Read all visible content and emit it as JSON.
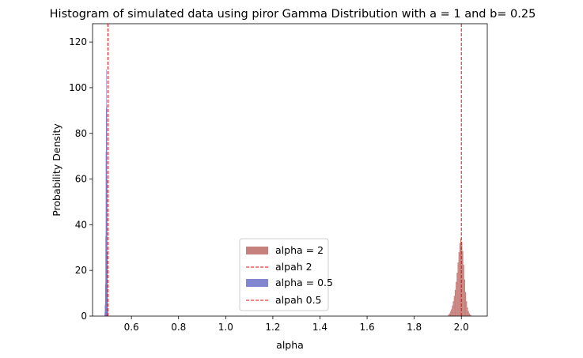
{
  "chart_data": {
    "type": "bar",
    "title": "Histogram of simulated data using piror Gamma Distribution with a = 1 and b= 0.25",
    "xlabel": "alpha",
    "ylabel": "Probability Density",
    "xlim": [
      0.435,
      2.11
    ],
    "ylim": [
      0,
      128
    ],
    "xticks": [
      0.6,
      0.8,
      1.0,
      1.2,
      1.4,
      1.6,
      1.8,
      2.0
    ],
    "xtick_labels": [
      "0.6",
      "0.8",
      "1.0",
      "1.2",
      "1.4",
      "1.6",
      "1.8",
      "2.0"
    ],
    "yticks": [
      0,
      20,
      40,
      60,
      80,
      100,
      120
    ],
    "ytick_labels": [
      "0",
      "20",
      "40",
      "60",
      "80",
      "100",
      "120"
    ],
    "grid": false,
    "legend_position": "lower-center",
    "series": [
      {
        "name": "alpha = 2",
        "kind": "histogram",
        "color": "#b8615b",
        "bin_width": 0.004,
        "bins": [
          [
            1.944,
            0.6
          ],
          [
            1.948,
            1.2
          ],
          [
            1.952,
            2.0
          ],
          [
            1.956,
            3.0
          ],
          [
            1.96,
            4.6
          ],
          [
            1.964,
            6.5
          ],
          [
            1.968,
            8.8
          ],
          [
            1.972,
            11.5
          ],
          [
            1.976,
            15.0
          ],
          [
            1.98,
            19.0
          ],
          [
            1.984,
            23.5
          ],
          [
            1.988,
            28.0
          ],
          [
            1.992,
            32.0
          ],
          [
            1.996,
            34.0
          ],
          [
            2.0,
            32.5
          ],
          [
            2.004,
            28.5
          ],
          [
            2.008,
            22.5
          ],
          [
            2.012,
            16.0
          ],
          [
            2.016,
            10.5
          ],
          [
            2.02,
            6.5
          ],
          [
            2.024,
            3.8
          ],
          [
            2.028,
            2.2
          ],
          [
            2.032,
            1.2
          ],
          [
            2.036,
            0.6
          ],
          [
            2.04,
            0.3
          ]
        ]
      },
      {
        "name": "alpha = 0.5",
        "kind": "histogram",
        "color": "#6366c4",
        "bin_width": 0.0012,
        "bins": [
          [
            0.486,
            1.5
          ],
          [
            0.4872,
            5.0
          ],
          [
            0.4884,
            14.0
          ],
          [
            0.4896,
            35.0
          ],
          [
            0.4908,
            72.0
          ],
          [
            0.492,
            91.0
          ],
          [
            0.4932,
            108.0
          ],
          [
            0.4944,
            92.0
          ],
          [
            0.4956,
            60.0
          ],
          [
            0.4968,
            28.0
          ],
          [
            0.498,
            10.0
          ],
          [
            0.4992,
            3.0
          ],
          [
            0.5004,
            1.0
          ]
        ]
      },
      {
        "name": "alpah 2",
        "kind": "vline",
        "x": 2.0,
        "color": "#ff0000",
        "linestyle": "dashed"
      },
      {
        "name": "alpah 0.5",
        "kind": "vline",
        "x": 0.5,
        "color": "#ff0000",
        "linestyle": "dashed"
      }
    ]
  }
}
